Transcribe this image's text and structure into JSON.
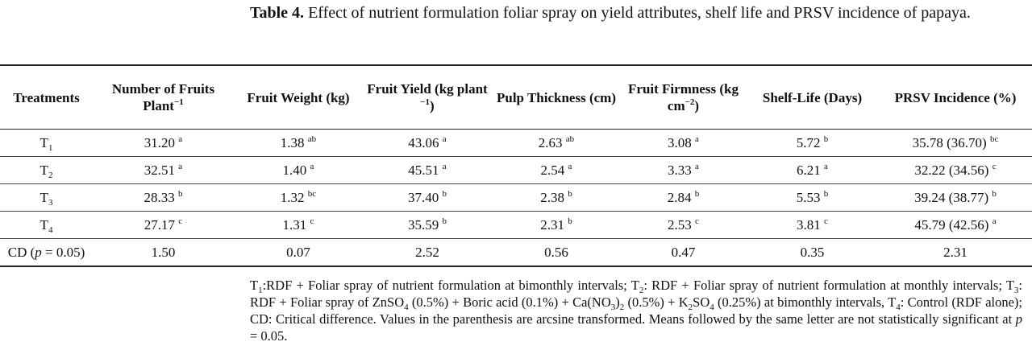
{
  "title": [
    {
      "bold": "Table 4."
    },
    {
      "text": " Effect of nutrient formulation foliar spray on yield attributes, shelf life and PRSV incidence of papaya."
    }
  ],
  "table": {
    "header": [
      [
        {
          "text": "Treatments"
        }
      ],
      [
        {
          "text": "Number of Fruits Plant"
        },
        {
          "sup": "−1"
        }
      ],
      [
        {
          "text": "Fruit Weight (kg)"
        }
      ],
      [
        {
          "text": "Fruit Yield (kg plant "
        },
        {
          "sup": "−1"
        },
        {
          "text": ")"
        }
      ],
      [
        {
          "text": "Pulp Thickness (cm)"
        }
      ],
      [
        {
          "text": "Fruit Firmness (kg cm"
        },
        {
          "sup": "−2"
        },
        {
          "text": ")"
        }
      ],
      [
        {
          "text": "Shelf-Life (Days)"
        }
      ],
      [
        {
          "text": "PRSV Incidence (%)"
        }
      ]
    ],
    "rows": [
      {
        "treatment": [
          {
            "text": "T"
          },
          {
            "sub": "1"
          }
        ],
        "cells": [
          {
            "value": "31.20",
            "letter": "a"
          },
          {
            "value": "1.38",
            "letter": "ab"
          },
          {
            "value": "43.06",
            "letter": "a"
          },
          {
            "value": "2.63",
            "letter": "ab"
          },
          {
            "value": "3.08",
            "letter": "a"
          },
          {
            "value": "5.72",
            "letter": "b"
          },
          {
            "value": "35.78 (36.70)",
            "letter": "bc"
          }
        ]
      },
      {
        "treatment": [
          {
            "text": "T"
          },
          {
            "sub": "2"
          }
        ],
        "cells": [
          {
            "value": "32.51",
            "letter": "a"
          },
          {
            "value": "1.40",
            "letter": "a"
          },
          {
            "value": "45.51",
            "letter": "a"
          },
          {
            "value": "2.54",
            "letter": "a"
          },
          {
            "value": "3.33",
            "letter": "a"
          },
          {
            "value": "6.21",
            "letter": "a"
          },
          {
            "value": "32.22 (34.56)",
            "letter": "c"
          }
        ]
      },
      {
        "treatment": [
          {
            "text": "T"
          },
          {
            "sub": "3"
          }
        ],
        "cells": [
          {
            "value": "28.33",
            "letter": "b"
          },
          {
            "value": "1.32",
            "letter": "bc"
          },
          {
            "value": "37.40",
            "letter": "b"
          },
          {
            "value": "2.38",
            "letter": "b"
          },
          {
            "value": "2.84",
            "letter": "b"
          },
          {
            "value": "5.53",
            "letter": "b"
          },
          {
            "value": "39.24 (38.77)",
            "letter": "b"
          }
        ]
      },
      {
        "treatment": [
          {
            "text": "T"
          },
          {
            "sub": "4"
          }
        ],
        "cells": [
          {
            "value": "27.17",
            "letter": "c"
          },
          {
            "value": "1.31",
            "letter": "c"
          },
          {
            "value": "35.59",
            "letter": "b"
          },
          {
            "value": "2.31",
            "letter": "b"
          },
          {
            "value": "2.53",
            "letter": "c"
          },
          {
            "value": "3.81",
            "letter": "c"
          },
          {
            "value": "45.79 (42.56)",
            "letter": "a"
          }
        ]
      },
      {
        "treatment": [
          {
            "text": "CD ("
          },
          {
            "italic": "p"
          },
          {
            "text": " = 0.05)"
          }
        ],
        "cells": [
          {
            "value": "1.50"
          },
          {
            "value": "0.07"
          },
          {
            "value": "2.52"
          },
          {
            "value": "0.56"
          },
          {
            "value": "0.47"
          },
          {
            "value": "0.35"
          },
          {
            "value": "2.31"
          }
        ]
      }
    ]
  },
  "footnote": [
    {
      "text": "T"
    },
    {
      "sub": "1"
    },
    {
      "text": ":RDF + Foliar spray of nutrient formulation at bimonthly intervals; T"
    },
    {
      "sub": "2"
    },
    {
      "text": ": RDF + Foliar spray of nutrient formulation at monthly intervals; T"
    },
    {
      "sub": "3"
    },
    {
      "text": ": RDF + Foliar spray of ZnSO"
    },
    {
      "sub": "4"
    },
    {
      "text": " (0.5%) + Boric acid (0.1%) + Ca(NO"
    },
    {
      "sub": "3"
    },
    {
      "text": ")"
    },
    {
      "sub": "2"
    },
    {
      "text": " (0.5%) + K"
    },
    {
      "sub": "2"
    },
    {
      "text": "SO"
    },
    {
      "sub": "4"
    },
    {
      "text": " (0.25%) at bimonthly intervals, T"
    },
    {
      "sub": "4"
    },
    {
      "text": ": Control (RDF alone); CD: Critical difference. Values in the parenthesis are arcsine transformed. Means followed by the same letter are not statistically significant at "
    },
    {
      "italic": "p"
    },
    {
      "text": " = 0.05."
    }
  ]
}
